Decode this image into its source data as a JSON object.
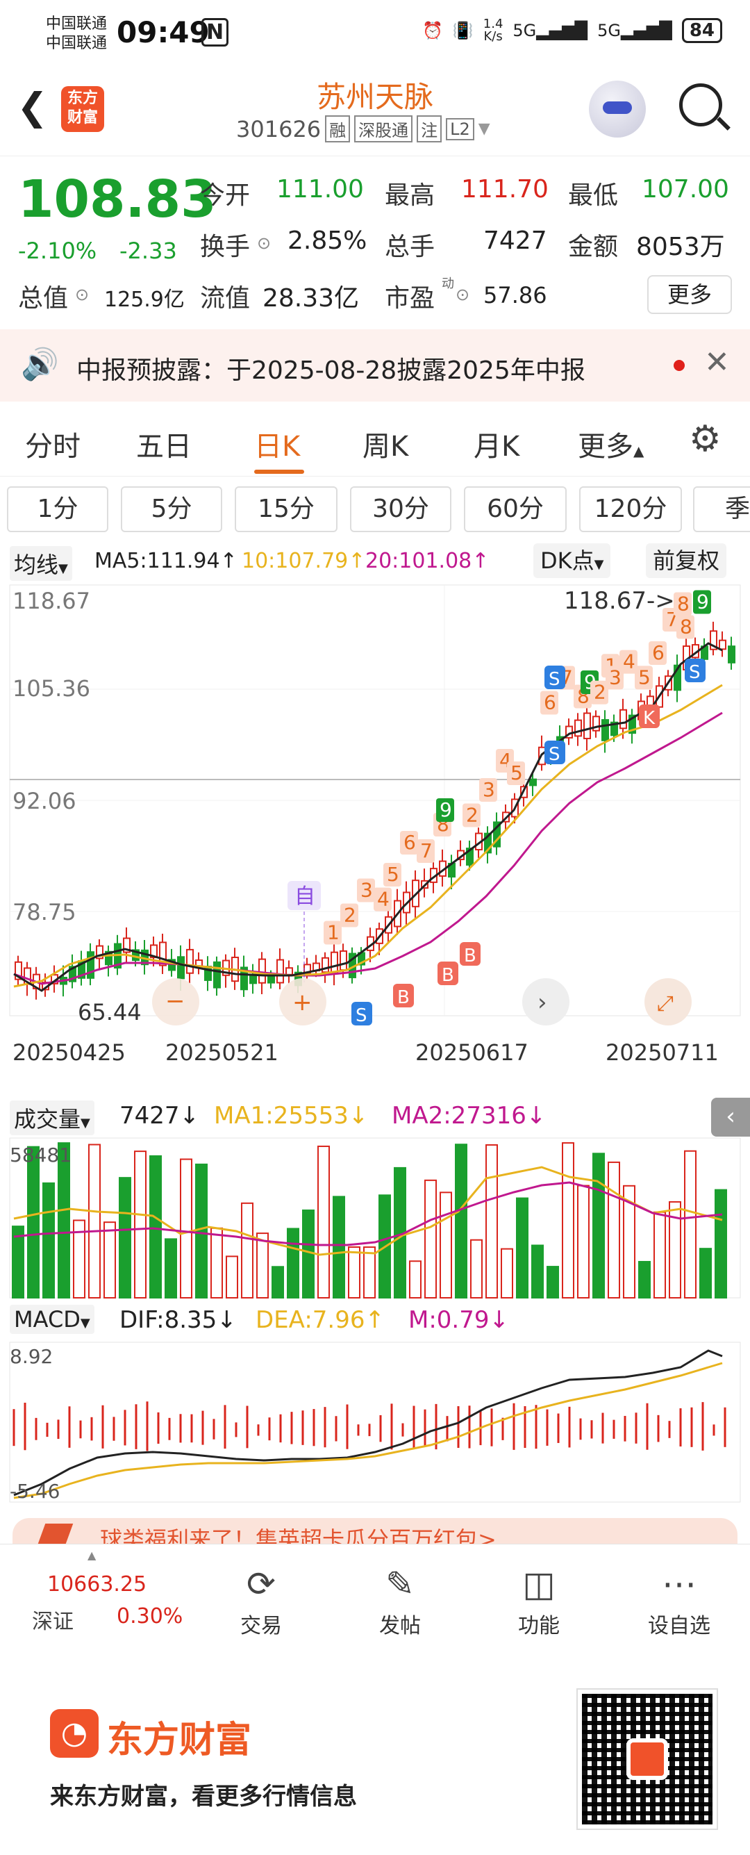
{
  "status_bar": {
    "carrier1": "中国联通",
    "carrier2": "中国联通",
    "time": "09:49",
    "net_speed_top": "1.4",
    "net_speed_unit": "K/s",
    "signal1": "5G",
    "signal2": "5G",
    "battery": "84"
  },
  "header": {
    "logo_text_1": "东方",
    "logo_text_2": "财富",
    "stock_name": "苏州天脉",
    "stock_code": "301626",
    "tags": [
      "融",
      "深股通",
      "注",
      "L2"
    ]
  },
  "quote": {
    "price": "108.83",
    "change_pct": "-2.10%",
    "change_abs": "-2.33",
    "open_label": "今开",
    "open_value": "111.00",
    "high_label": "最高",
    "high_value": "111.70",
    "low_label": "最低",
    "low_value": "107.00",
    "turnover_label": "换手",
    "turnover_value": "2.85%",
    "volume_label": "总手",
    "volume_value": "7427",
    "amount_label": "金额",
    "amount_value": "8053万",
    "mktcap_label": "总值",
    "mktcap_value": "125.9亿",
    "float_label": "流值",
    "float_value": "28.33亿",
    "pe_label": "市盈",
    "pe_sup": "动",
    "pe_value": "57.86",
    "more_button": "更多"
  },
  "notice": {
    "text": "中报预披露：于2025-08-28披露2025年中报"
  },
  "chart_tabs": {
    "items": [
      "分时",
      "五日",
      "日K",
      "周K",
      "月K",
      "更多"
    ],
    "active": "日K"
  },
  "periods": [
    "1分",
    "5分",
    "15分",
    "30分",
    "60分",
    "120分",
    "季"
  ],
  "kline_header": {
    "indicator": "均线",
    "ma5": "MA5:111.94",
    "ma10": "10:107.79",
    "ma20": "20:101.08",
    "dk_button": "DK点",
    "adjust_button": "前复权"
  },
  "chart_data": [
    {
      "type": "candlestick",
      "title": "",
      "y_ticks": [
        "118.67",
        "105.36",
        "92.06",
        "78.75"
      ],
      "ylim": [
        65.44,
        118.67
      ],
      "x_ticks": [
        "20250425",
        "20250521",
        "20250617",
        "20250711"
      ],
      "annotations": {
        "high_marker": "118.67->",
        "low_marker": "65.44",
        "event_marker": "自",
        "signals": [
          "B",
          "B",
          "B",
          "S",
          "S",
          "S",
          "S",
          "K"
        ],
        "counts": [
          "1",
          "2",
          "3",
          "4",
          "5",
          "6",
          "7",
          "8",
          "9",
          "2",
          "3",
          "4",
          "5",
          "6",
          "7",
          "8",
          "9",
          "1",
          "2",
          "3",
          "4",
          "5",
          "6",
          "7",
          "8",
          "9",
          "8"
        ]
      },
      "colors": {
        "up": "#d9251c",
        "down": "#1a9f2e",
        "ma5": "#222222",
        "ma10": "#e8b31e",
        "ma20": "#c0188e"
      }
    },
    {
      "type": "bar",
      "title": "成交量",
      "values_text": {
        "vol": "7427",
        "ma1": "MA1:25553",
        "ma2": "MA2:27316"
      },
      "y_max_label": "58481"
    },
    {
      "type": "line",
      "title": "MACD",
      "values_text": {
        "dif": "DIF:8.35",
        "dea": "DEA:7.96",
        "m": "M:0.79"
      },
      "y_max_label": "8.92",
      "y_min_label": "-5.46"
    }
  ],
  "volume_header": {
    "indicator": "成交量",
    "vol": "7427",
    "ma1": "MA1:25553",
    "ma2": "MA2:27316"
  },
  "macd_header": {
    "indicator": "MACD",
    "dif": "DIF:8.35",
    "dea": "DEA:7.96",
    "m": "M:0.79"
  },
  "promo": {
    "text": "球类福利来了！集英超卡瓜分百万红包>"
  },
  "bottom_nav": {
    "index_value": "10663.25",
    "index_name": "深证",
    "index_change": "0.30%",
    "items": [
      {
        "label": "交易",
        "icon": "trade-icon"
      },
      {
        "label": "发帖",
        "icon": "post-icon"
      },
      {
        "label": "功能",
        "icon": "grid-icon"
      },
      {
        "label": "设自选",
        "icon": "more-dots-icon"
      }
    ]
  },
  "footer": {
    "brand": "东方财富",
    "slogan": "来东方财富，看更多行情信息"
  }
}
